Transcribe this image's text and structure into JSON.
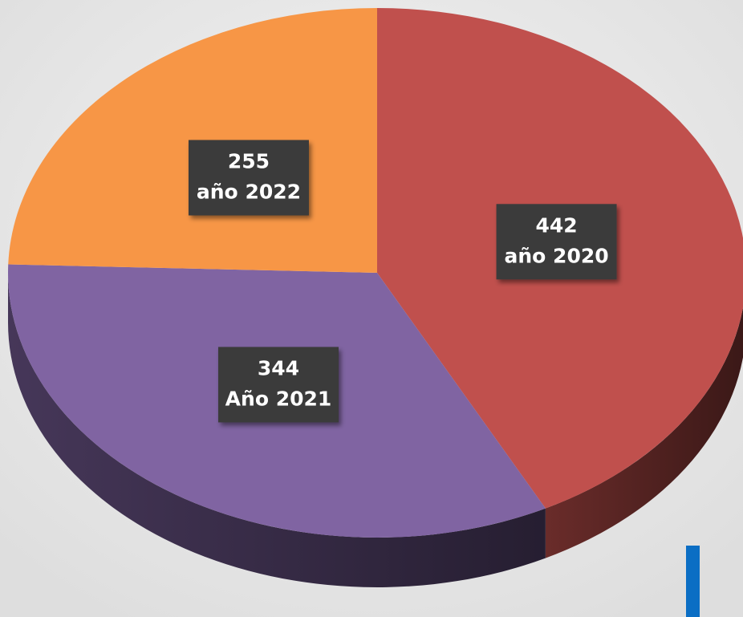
{
  "chart_data": {
    "type": "pie",
    "categories": [
      "año 2020",
      "Año 2021",
      "año 2022"
    ],
    "values": [
      442,
      344,
      255
    ],
    "colors": [
      "#c0504d",
      "#8064a2",
      "#f79646"
    ]
  }
}
